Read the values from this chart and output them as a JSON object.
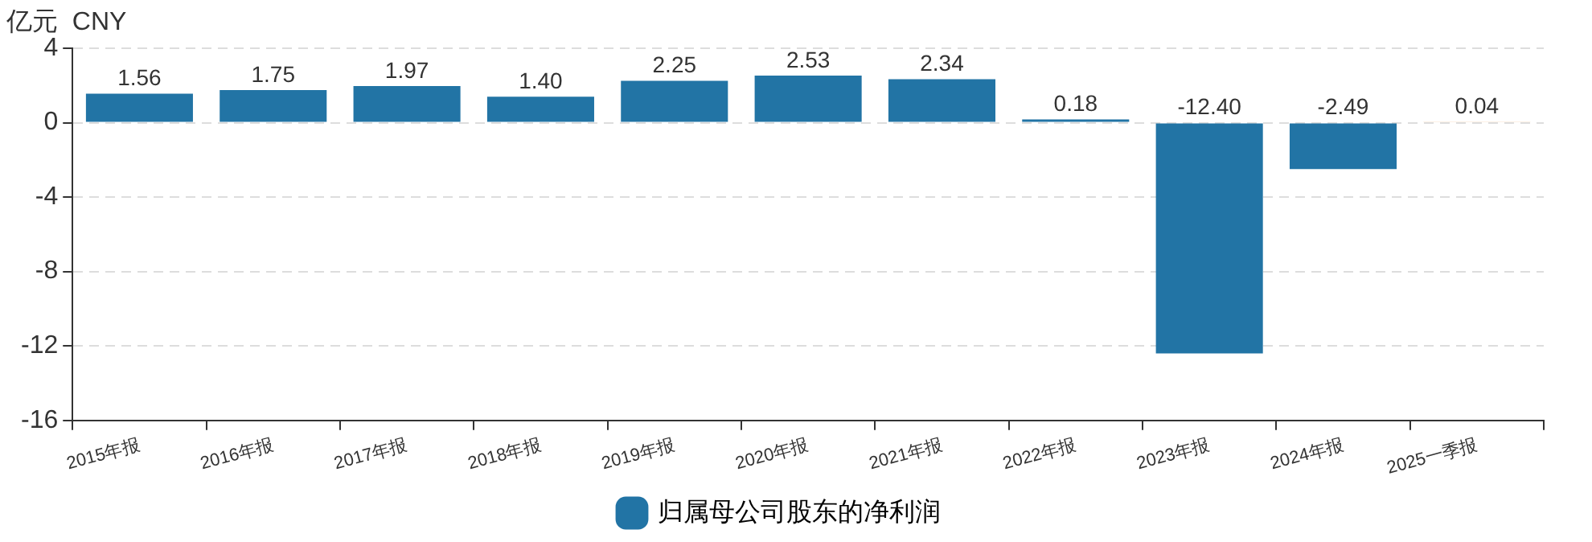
{
  "chart_data": {
    "type": "bar",
    "ylabel": "亿元  CNY",
    "categories": [
      "2015年报",
      "2016年报",
      "2017年报",
      "2018年报",
      "2019年报",
      "2020年报",
      "2021年报",
      "2022年报",
      "2023年报",
      "2024年报",
      "2025一季报"
    ],
    "series": [
      {
        "name": "归属母公司股东的净利润",
        "color": "#2274a5",
        "colors": [
          "#2274a5",
          "#2274a5",
          "#2274a5",
          "#2274a5",
          "#2274a5",
          "#2274a5",
          "#2274a5",
          "#2274a5",
          "#2274a5",
          "#2274a5",
          "#f5c89c"
        ],
        "values": [
          1.56,
          1.75,
          1.97,
          1.4,
          2.25,
          2.53,
          2.34,
          0.18,
          -12.4,
          -2.49,
          0.04
        ],
        "value_labels": [
          "1.56",
          "1.75",
          "1.97",
          "1.40",
          "2.25",
          "2.53",
          "2.34",
          "0.18",
          "-12.40",
          "-2.49",
          "0.04"
        ]
      }
    ],
    "ylim": [
      -16,
      4
    ],
    "yticks": [
      -16,
      -12,
      -8,
      -4,
      0,
      4
    ],
    "grid": "y",
    "legend": "bottom"
  }
}
